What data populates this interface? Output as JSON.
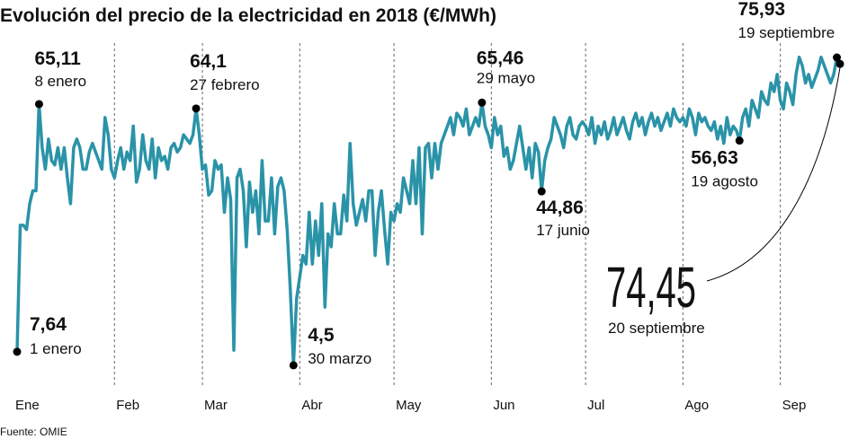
{
  "chart_data": {
    "type": "line",
    "title": "Evolución del precio de la electricidad en 2018 (€/MWh)",
    "source": "Fuente: OMIE",
    "categories": [
      "Ene",
      null,
      null,
      null,
      null,
      null,
      null,
      null,
      null,
      null,
      null,
      null,
      null,
      null,
      null,
      null,
      null,
      null,
      null,
      null,
      null,
      null,
      null,
      null,
      null,
      null,
      null,
      null,
      null,
      null,
      null,
      "Feb",
      null,
      null,
      null,
      null,
      null,
      null,
      null,
      null,
      null,
      null,
      null,
      null,
      null,
      null,
      null,
      null,
      null,
      null,
      null,
      null,
      null,
      null,
      null,
      null,
      null,
      null,
      null,
      "Mar",
      null,
      null,
      null,
      null,
      null,
      null,
      null,
      null,
      null,
      null,
      null,
      null,
      null,
      null,
      null,
      null,
      null,
      null,
      null,
      null,
      null,
      null,
      null,
      null,
      null,
      null,
      null,
      null,
      null,
      null,
      "Abr",
      null,
      null,
      null,
      null,
      null,
      null,
      null,
      null,
      null,
      null,
      null,
      null,
      null,
      null,
      null,
      null,
      null,
      null,
      null,
      null,
      null,
      null,
      null,
      null,
      null,
      null,
      null,
      null,
      null,
      "May",
      null,
      null,
      null,
      null,
      null,
      null,
      null,
      null,
      null,
      null,
      null,
      null,
      null,
      null,
      null,
      null,
      null,
      null,
      null,
      null,
      null,
      null,
      null,
      null,
      null,
      null,
      null,
      null,
      null,
      null,
      "Jun",
      null,
      null,
      null,
      null,
      null,
      null,
      null,
      null,
      null,
      null,
      null,
      null,
      null,
      null,
      null,
      null,
      null,
      null,
      null,
      null,
      null,
      null,
      null,
      null,
      null,
      null,
      null,
      null,
      null,
      "Jul",
      null,
      null,
      null,
      null,
      null,
      null,
      null,
      null,
      null,
      null,
      null,
      null,
      null,
      null,
      null,
      null,
      null,
      null,
      null,
      null,
      null,
      null,
      null,
      null,
      null,
      null,
      null,
      null,
      null,
      null,
      "Ago",
      null,
      null,
      null,
      null,
      null,
      null,
      null,
      null,
      null,
      null,
      null,
      null,
      null,
      null,
      null,
      null,
      null,
      null,
      null,
      null,
      null,
      null,
      null,
      null,
      null,
      null,
      null,
      null,
      null,
      null,
      "Sep",
      null,
      null,
      null,
      null,
      null,
      null,
      null,
      null,
      null,
      null,
      null,
      null,
      null,
      null,
      null,
      null,
      null,
      null,
      null
    ],
    "values": [
      7.64,
      37,
      37,
      36,
      42,
      45,
      45,
      65.11,
      55,
      50,
      57,
      52,
      51,
      55,
      50,
      55,
      48,
      42,
      55,
      57,
      55,
      50,
      50,
      54,
      56,
      54,
      52,
      50,
      62,
      58,
      50,
      48,
      52,
      55,
      50,
      54,
      52,
      60,
      47,
      50,
      58,
      52,
      50,
      57,
      48,
      55,
      52,
      53,
      50,
      55,
      56,
      54,
      55,
      58,
      57,
      56,
      58,
      64.1,
      58,
      50,
      51,
      44,
      45,
      52,
      50,
      51,
      40,
      48,
      43,
      8,
      48,
      50,
      45,
      32,
      47,
      40,
      45,
      35,
      52,
      38,
      38,
      48,
      35,
      46,
      48,
      45,
      36,
      22,
      4.5,
      20,
      25,
      30,
      28,
      40,
      28,
      38,
      30,
      42,
      18,
      35,
      32,
      42,
      35,
      35,
      44,
      38,
      56,
      42,
      37,
      40,
      43,
      38,
      45,
      45,
      30,
      40,
      45,
      36,
      28,
      40,
      38,
      42,
      40,
      48,
      45,
      42,
      52,
      42,
      55,
      35,
      55,
      56,
      48,
      56,
      50,
      56,
      58,
      60,
      62,
      58,
      63,
      62,
      60,
      64,
      58,
      60,
      62,
      60,
      65.46,
      60,
      58,
      55,
      62,
      58,
      60,
      53,
      55,
      50,
      52,
      56,
      60,
      55,
      50,
      55,
      48,
      56,
      54,
      44.86,
      52,
      55,
      57,
      62,
      60,
      58,
      55,
      60,
      62,
      58,
      57,
      60,
      61,
      60,
      58,
      62,
      56,
      60,
      58,
      61,
      57,
      59,
      62,
      58,
      60,
      62,
      59,
      57,
      61,
      63,
      60,
      62,
      58,
      61,
      63,
      60,
      62,
      59,
      61,
      63,
      60,
      64,
      62,
      61,
      62,
      60,
      64,
      62,
      58,
      63,
      61,
      62,
      60,
      59,
      61,
      57,
      60,
      56,
      62,
      58,
      60,
      59,
      56.63,
      62,
      64,
      60,
      66,
      64,
      62,
      68,
      66,
      65,
      70,
      68,
      72,
      66,
      64,
      70,
      68,
      65,
      72,
      76,
      74,
      70,
      72,
      69,
      71,
      73,
      76,
      74,
      72,
      70,
      72,
      75.93,
      74.45
    ],
    "value_labels": [
      "7,64",
      null,
      null,
      null,
      null,
      null,
      null,
      "65,11",
      null,
      null,
      null,
      null,
      null,
      null,
      null,
      null,
      null,
      null,
      null,
      null,
      null,
      null,
      null,
      null,
      null,
      null,
      null,
      null,
      null,
      null,
      null,
      null,
      null,
      null,
      null,
      null,
      null,
      null,
      null,
      null,
      null,
      null,
      null,
      null,
      null,
      null,
      null,
      null,
      null,
      null,
      null,
      null,
      null,
      null,
      null,
      null,
      null,
      "64,1",
      null,
      null,
      null,
      null,
      null,
      null,
      null,
      null,
      null,
      null,
      null,
      null,
      null,
      null,
      null,
      null,
      null,
      null,
      null,
      null,
      null,
      null,
      null,
      null,
      null,
      null,
      null,
      null,
      null,
      null,
      "4,5",
      null,
      null,
      null,
      null,
      null,
      null,
      null,
      null,
      null,
      null,
      null,
      null,
      null,
      null,
      null,
      null,
      null,
      null,
      null,
      null,
      null,
      null,
      null,
      null,
      null,
      null,
      null,
      null,
      null,
      null,
      null,
      null,
      null,
      null,
      null,
      null,
      null,
      null,
      null,
      null,
      null,
      null,
      null,
      null,
      null,
      null,
      null,
      null,
      null,
      null,
      null,
      null,
      null,
      null,
      null,
      null,
      null,
      null,
      null,
      "65,46",
      null,
      null,
      null,
      null,
      null,
      null,
      null,
      null,
      null,
      null,
      null,
      null,
      null,
      null,
      null,
      null,
      null,
      null,
      "44,86",
      null,
      null,
      null,
      null,
      null,
      null,
      null,
      null,
      null,
      null,
      null,
      null,
      null,
      null,
      null,
      null,
      null,
      null,
      null,
      null,
      null,
      null,
      null,
      null,
      null,
      null,
      null,
      null,
      null,
      null,
      null,
      null,
      null,
      null,
      null,
      null,
      null,
      null,
      null,
      null,
      null,
      null,
      null,
      null,
      null,
      null,
      null,
      null,
      null,
      null,
      null,
      null,
      null,
      null,
      null,
      null,
      null,
      null,
      null,
      null,
      null,
      null,
      "56,63",
      null,
      null,
      null,
      null,
      null,
      null,
      null,
      null,
      null,
      null,
      null,
      null,
      null,
      null,
      null,
      null,
      null,
      null,
      null,
      null,
      null,
      null,
      null,
      null,
      null,
      null,
      null,
      null,
      null,
      null,
      "75,93",
      "74,45"
    ],
    "date_labels": [
      "1 enero",
      null,
      null,
      null,
      null,
      null,
      null,
      "8 enero",
      null,
      null,
      null,
      null,
      null,
      null,
      null,
      null,
      null,
      null,
      null,
      null,
      null,
      null,
      null,
      null,
      null,
      null,
      null,
      null,
      null,
      null,
      null,
      null,
      null,
      null,
      null,
      null,
      null,
      null,
      null,
      null,
      null,
      null,
      null,
      null,
      null,
      null,
      null,
      null,
      null,
      null,
      null,
      null,
      null,
      null,
      null,
      null,
      null,
      "27 febrero",
      null,
      null,
      null,
      null,
      null,
      null,
      null,
      null,
      null,
      null,
      null,
      null,
      null,
      null,
      null,
      null,
      null,
      null,
      null,
      null,
      null,
      null,
      null,
      null,
      null,
      null,
      null,
      null,
      null,
      null,
      "30 marzo",
      null,
      null,
      null,
      null,
      null,
      null,
      null,
      null,
      null,
      null,
      null,
      null,
      null,
      null,
      null,
      null,
      null,
      null,
      null,
      null,
      null,
      null,
      null,
      null,
      null,
      null,
      null,
      null,
      null,
      null,
      null,
      null,
      null,
      null,
      null,
      null,
      null,
      null,
      null,
      null,
      null,
      null,
      null,
      null,
      null,
      null,
      null,
      null,
      null,
      null,
      null,
      null,
      null,
      null,
      null,
      null,
      null,
      null,
      null,
      "29 mayo",
      null,
      null,
      null,
      null,
      null,
      null,
      null,
      null,
      null,
      null,
      null,
      null,
      null,
      null,
      null,
      null,
      null,
      null,
      "17 junio",
      null,
      null,
      null,
      null,
      null,
      null,
      null,
      null,
      null,
      null,
      null,
      null,
      null,
      null,
      null,
      null,
      null,
      null,
      null,
      null,
      null,
      null,
      null,
      null,
      null,
      null,
      null,
      null,
      null,
      null,
      null,
      null,
      null,
      null,
      null,
      null,
      null,
      null,
      null,
      null,
      null,
      null,
      null,
      null,
      null,
      null,
      null,
      null,
      null,
      null,
      null,
      null,
      null,
      null,
      null,
      null,
      null,
      null,
      null,
      null,
      null,
      null,
      "19 agosto",
      null,
      null,
      null,
      null,
      null,
      null,
      null,
      null,
      null,
      null,
      null,
      null,
      null,
      null,
      null,
      null,
      null,
      null,
      null,
      null,
      null,
      null,
      null,
      null,
      null,
      null,
      null,
      null,
      null,
      null,
      "19 septiembre",
      "20 septiembre"
    ],
    "color": "#2a93a8",
    "ylim": [
      0,
      90
    ],
    "grid": "month"
  }
}
